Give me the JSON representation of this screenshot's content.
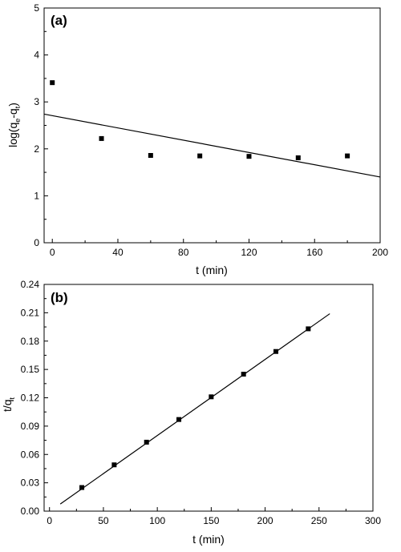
{
  "chart_data": [
    {
      "type": "scatter",
      "panel_label": "(a)",
      "xlabel": "t (min)",
      "ylabel_main": "log(q",
      "ylabel_sub1": "e",
      "ylabel_mid": "-q",
      "ylabel_sub2": "t",
      "ylabel_end": ")",
      "xlim": [
        -5,
        200
      ],
      "ylim": [
        0,
        5
      ],
      "xticks": [
        0,
        40,
        80,
        120,
        160,
        200
      ],
      "yticks": [
        0,
        1,
        2,
        3,
        4,
        5
      ],
      "xtick_labels": [
        "0",
        "40",
        "80",
        "120",
        "160",
        "200"
      ],
      "ytick_labels": [
        "0",
        "1",
        "2",
        "3",
        "4",
        "5"
      ],
      "series": [
        {
          "x": [
            0,
            30,
            60,
            90,
            120,
            150,
            180
          ],
          "y": [
            3.41,
            2.22,
            1.86,
            1.85,
            1.84,
            1.81,
            1.85
          ]
        }
      ],
      "fit_line": {
        "x": [
          -5,
          200
        ],
        "y": [
          2.74,
          1.4
        ]
      },
      "grid": false
    },
    {
      "type": "scatter",
      "panel_label": "(b)",
      "xlabel": "t (min)",
      "ylabel_main": "t/q",
      "ylabel_sub1": "t",
      "xlim": [
        -5,
        300
      ],
      "ylim": [
        0,
        0.24
      ],
      "xticks": [
        0,
        50,
        100,
        150,
        200,
        250,
        300
      ],
      "yticks": [
        0,
        0.03,
        0.06,
        0.09,
        0.12,
        0.15,
        0.18,
        0.21,
        0.24
      ],
      "xtick_labels": [
        "0",
        "50",
        "100",
        "150",
        "200",
        "250",
        "300"
      ],
      "ytick_labels": [
        "0.00",
        "0.03",
        "0.06",
        "0.09",
        "0.12",
        "0.15",
        "0.18",
        "0.21",
        "0.24"
      ],
      "series": [
        {
          "x": [
            30,
            60,
            90,
            120,
            150,
            180,
            210,
            240
          ],
          "y": [
            0.025,
            0.049,
            0.073,
            0.097,
            0.121,
            0.145,
            0.169,
            0.193
          ]
        }
      ],
      "fit_line": {
        "x": [
          10,
          260
        ],
        "y": [
          0.0075,
          0.209
        ]
      },
      "grid": false
    }
  ]
}
